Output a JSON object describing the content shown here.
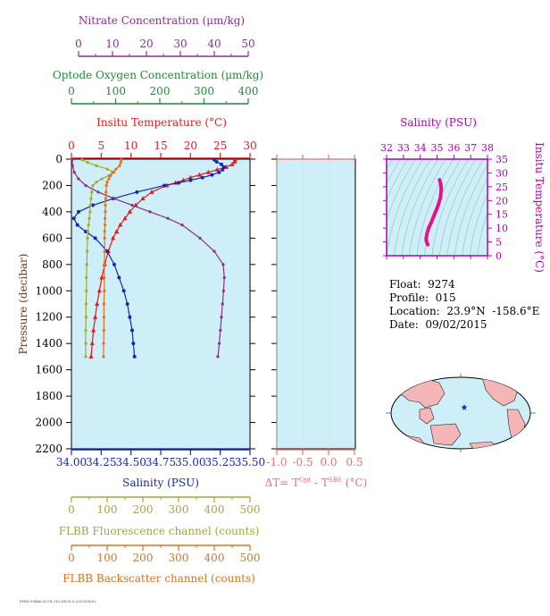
{
  "colors": {
    "nitrate": "#8B2D8F",
    "oxygen": "#1E8A3A",
    "temperature": "#E41A1C",
    "salinity": "#1428B8",
    "fluorescence": "#A3A832",
    "backscatter": "#E0701E",
    "delta_t": "#E87070",
    "ts_curve": "#E0138C",
    "panel_bg": "#CFEFF8",
    "inset_border": "#B000B0",
    "land": "#F4B6B6",
    "ocean": "#CFEFF8"
  },
  "axes": {
    "nitrate": {
      "label": "Nitrate Concentration (μm/kg)",
      "ticks": [
        "0",
        "10",
        "20",
        "30",
        "40",
        "50"
      ],
      "range": [
        0,
        50
      ]
    },
    "oxygen": {
      "label": "Optode Oxygen Concentration (μm/kg)",
      "ticks": [
        "0",
        "100",
        "200",
        "300",
        "400"
      ],
      "range": [
        0,
        400
      ]
    },
    "temperature": {
      "label": "Insitu Temperature (°C)",
      "ticks": [
        "0",
        "5",
        "10",
        "15",
        "20",
        "25",
        "30"
      ],
      "range": [
        0,
        30
      ]
    },
    "pressure": {
      "label": "Pressure (decibar)",
      "ticks": [
        "0",
        "200",
        "400",
        "600",
        "800",
        "1000",
        "1200",
        "1400",
        "1600",
        "1800",
        "2000",
        "2200"
      ],
      "range": [
        0,
        2200
      ]
    },
    "salinity": {
      "label": "Salinity (PSU)",
      "ticks": [
        "34.00",
        "34.25",
        "34.50",
        "34.75",
        "35.00",
        "35.25",
        "35.50"
      ],
      "range": [
        34.0,
        35.5
      ]
    },
    "fluorescence": {
      "label": "FLBB Fluorescence channel (counts)",
      "ticks": [
        "0",
        "100",
        "200",
        "300",
        "400",
        "500"
      ],
      "range": [
        0,
        500
      ]
    },
    "backscatter": {
      "label": "FLBB Backscatter channel (counts)",
      "ticks": [
        "0",
        "100",
        "200",
        "300",
        "400",
        "500"
      ],
      "range": [
        0,
        500
      ]
    },
    "delta_t": {
      "label_prefix": "ΔT= T",
      "label_sup1": "Opt",
      "label_mid": " - T",
      "label_sup2": "SBE",
      "label_suffix": " (°C)",
      "ticks": [
        "-1.0",
        "-0.5",
        "0.0",
        "0.5"
      ],
      "range": [
        -1.0,
        0.5
      ]
    }
  },
  "ts_inset": {
    "title": "Salinity (PSU)",
    "x_ticks": [
      "32",
      "33",
      "34",
      "35",
      "36",
      "37",
      "38"
    ],
    "x_range": [
      32,
      38
    ],
    "y_label": "Insitu Temperature (°C)",
    "y_ticks": [
      "0",
      "5",
      "10",
      "15",
      "20",
      "25",
      "30",
      "35"
    ],
    "y_range": [
      0,
      35
    ]
  },
  "info": {
    "float_label": "Float:",
    "float_value": "9274",
    "profile_label": "Profile:",
    "profile_value": "015",
    "location_label": "Location:",
    "location_value": "23.9°N  -158.6°E",
    "date_label": "Date:",
    "date_value": "09/02/2015"
  },
  "footer_text": "FHSI:59466,9274_015,MCN:0,2015/09/02",
  "chart_data": {
    "type": "line",
    "y_axis": "pressure",
    "series": [
      {
        "axis": "temperature",
        "color": "#E41A1C",
        "pressure": [
          5,
          20,
          40,
          60,
          80,
          100,
          120,
          140,
          160,
          180,
          200,
          250,
          300,
          350,
          400,
          450,
          500,
          550,
          600,
          700,
          800,
          900,
          1000,
          1100,
          1200,
          1300,
          1400,
          1500
        ],
        "values": [
          27.5,
          27.4,
          27.0,
          26.0,
          24.5,
          23.0,
          21.5,
          20.0,
          18.8,
          17.5,
          16.0,
          13.5,
          12.0,
          10.8,
          9.8,
          9.0,
          8.2,
          7.6,
          7.0,
          6.2,
          5.6,
          5.1,
          4.7,
          4.3,
          4.0,
          3.7,
          3.5,
          3.3
        ]
      },
      {
        "axis": "salinity",
        "color": "#1428B8",
        "pressure": [
          5,
          20,
          40,
          60,
          80,
          100,
          120,
          140,
          160,
          180,
          200,
          250,
          300,
          350,
          400,
          450,
          500,
          550,
          600,
          700,
          800,
          900,
          1000,
          1100,
          1200,
          1300,
          1400,
          1500
        ],
        "values": [
          35.2,
          35.22,
          35.26,
          35.28,
          35.27,
          35.24,
          35.18,
          35.1,
          35.0,
          34.9,
          34.78,
          34.55,
          34.35,
          34.18,
          34.06,
          34.02,
          34.05,
          34.12,
          34.2,
          34.3,
          34.36,
          34.4,
          34.44,
          34.47,
          34.49,
          34.51,
          34.52,
          34.53
        ]
      },
      {
        "axis": "nitrate",
        "color": "#8B2D8F",
        "pressure": [
          5,
          50,
          100,
          150,
          200,
          250,
          300,
          350,
          400,
          450,
          500,
          600,
          700,
          800,
          900,
          1000,
          1100,
          1200,
          1300,
          1400,
          1500
        ],
        "values": [
          0.2,
          0.3,
          0.8,
          2.0,
          4.0,
          7.5,
          12.0,
          17.0,
          22.0,
          27.0,
          31.0,
          36.0,
          40.0,
          42.5,
          42.8,
          42.6,
          42.3,
          42.0,
          41.7,
          41.4,
          41.0
        ]
      },
      {
        "axis": "fluorescence",
        "color": "#A3A832",
        "pressure": [
          5,
          25,
          50,
          75,
          100,
          125,
          150,
          175,
          200,
          250,
          300,
          350,
          400,
          450,
          500,
          550,
          600,
          700,
          800,
          900,
          1000,
          1100,
          1200,
          1300,
          1400,
          1500
        ],
        "values": [
          30,
          45,
          70,
          100,
          120,
          105,
          85,
          70,
          60,
          57,
          55,
          53,
          52,
          50,
          48,
          46,
          45,
          44,
          43,
          42,
          42,
          41,
          41,
          40,
          40,
          40
        ]
      },
      {
        "axis": "backscatter",
        "color": "#E0701E",
        "pressure": [
          5,
          25,
          50,
          75,
          100,
          125,
          150,
          175,
          200,
          250,
          300,
          350,
          400,
          450,
          500,
          550,
          600,
          700,
          800,
          900,
          1000,
          1100,
          1200,
          1300,
          1400,
          1500
        ],
        "values": [
          140,
          138,
          135,
          125,
          115,
          110,
          105,
          100,
          98,
          97,
          96,
          95,
          95,
          94,
          94,
          93,
          93,
          93,
          92,
          92,
          92,
          91,
          91,
          91,
          90,
          90
        ]
      }
    ],
    "ts_curve": {
      "salinity": [
        35.15,
        35.22,
        35.25,
        35.2,
        35.05,
        34.85,
        34.65,
        34.5,
        34.4,
        34.35,
        34.38,
        34.45
      ],
      "temperature": [
        27.5,
        26,
        24,
        21,
        18,
        15,
        12,
        10,
        8,
        6,
        5,
        4
      ]
    }
  }
}
